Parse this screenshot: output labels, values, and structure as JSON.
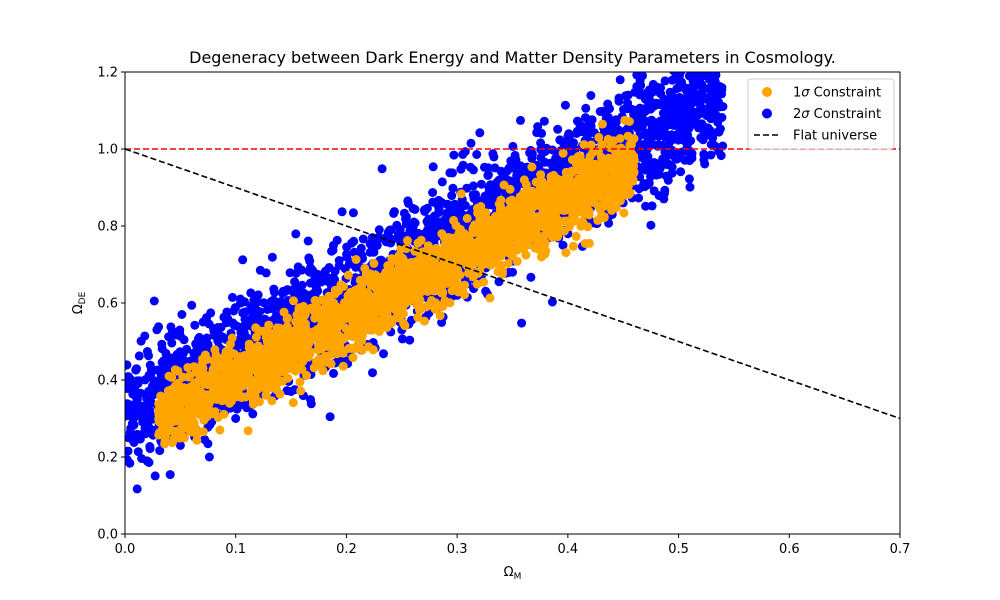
{
  "chart_data": {
    "type": "scatter",
    "title": "Degeneracy between Dark Energy and Matter Density Parameters in Cosmology.",
    "xlabel": {
      "base": "Ω",
      "sub": "M"
    },
    "ylabel": {
      "base": "Ω",
      "sub": "DE"
    },
    "xlim": [
      0.0,
      0.7
    ],
    "ylim": [
      0.0,
      1.2
    ],
    "xticks": [
      0.0,
      0.1,
      0.2,
      0.3,
      0.4,
      0.5,
      0.6,
      0.7
    ],
    "xtick_labels": [
      "0.0",
      "0.1",
      "0.2",
      "0.3",
      "0.4",
      "0.5",
      "0.6",
      "0.7"
    ],
    "yticks": [
      0.0,
      0.2,
      0.4,
      0.6,
      0.8,
      1.0,
      1.2
    ],
    "ytick_labels": [
      "0.0",
      "0.2",
      "0.4",
      "0.6",
      "0.8",
      "1.0",
      "1.2"
    ],
    "grid": false,
    "legend_position": "top-right",
    "series": [
      {
        "name": "2σ Constraint",
        "kind": "scatter",
        "color": "#0000ff",
        "trend": {
          "slope": 1.55,
          "intercept": 0.307
        },
        "x_range": [
          0.0,
          0.54
        ],
        "perp_spread": 0.075,
        "sample_points": [
          [
            0.0,
            0.19
          ],
          [
            0.02,
            0.19
          ],
          [
            0.05,
            0.23
          ],
          [
            0.1,
            0.3
          ],
          [
            0.15,
            0.37
          ],
          [
            0.2,
            0.45
          ],
          [
            0.25,
            0.53
          ],
          [
            0.3,
            0.62
          ],
          [
            0.35,
            0.68
          ],
          [
            0.4,
            0.78
          ],
          [
            0.45,
            0.86
          ],
          [
            0.5,
            0.98
          ],
          [
            0.52,
            1.11
          ],
          [
            0.54,
            1.11
          ]
        ]
      },
      {
        "name": "1σ Constraint",
        "kind": "scatter",
        "color": "#ffa500",
        "trend": {
          "slope": 1.55,
          "intercept": 0.25
        },
        "x_range": [
          0.03,
          0.46
        ],
        "perp_spread": 0.045,
        "sample_points": [
          [
            0.03,
            0.32
          ],
          [
            0.05,
            0.34
          ],
          [
            0.1,
            0.42
          ],
          [
            0.15,
            0.48
          ],
          [
            0.2,
            0.56
          ],
          [
            0.25,
            0.64
          ],
          [
            0.3,
            0.72
          ],
          [
            0.35,
            0.8
          ],
          [
            0.4,
            0.87
          ],
          [
            0.45,
            0.94
          ],
          [
            0.46,
            0.97
          ]
        ]
      }
    ],
    "lines": [
      {
        "name": "",
        "kind": "hline",
        "y": 1.0,
        "color": "#ff0000",
        "dash": true
      },
      {
        "name": "Flat universe",
        "kind": "line",
        "x": [
          0.0,
          0.7
        ],
        "y": [
          1.0,
          0.3
        ],
        "color": "#000000",
        "dash": true
      }
    ],
    "legend": [
      {
        "label_base": "1",
        "label_sym": "σ",
        "label_rest": " Constraint",
        "color": "#ffa500",
        "marker": "circle"
      },
      {
        "label_base": "2",
        "label_sym": "σ",
        "label_rest": " Constraint",
        "color": "#0000ff",
        "marker": "circle"
      },
      {
        "label_base": "",
        "label_sym": "",
        "label_rest": "Flat universe",
        "color": "#000000",
        "marker": "dash"
      }
    ]
  }
}
